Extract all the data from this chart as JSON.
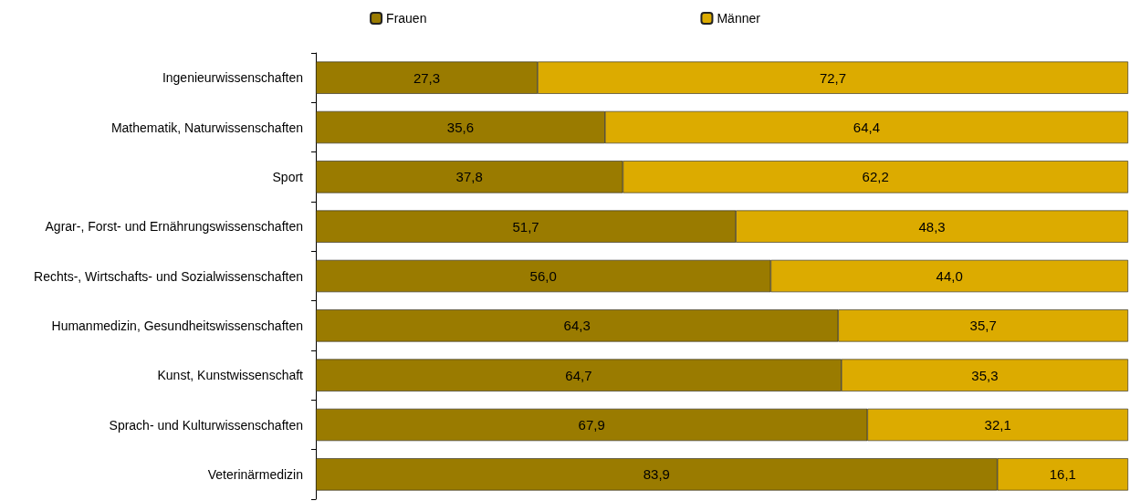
{
  "chart_data": {
    "type": "bar",
    "orientation": "horizontal",
    "stacked": true,
    "categories": [
      "Ingenieurwissenschaften",
      "Mathematik, Naturwissenschaften",
      "Sport",
      "Agrar-, Forst- und Ernährungswissenschaften",
      "Rechts-, Wirtschafts- und Sozialwissenschaften",
      "Humanmedizin, Gesundheitswissenschaften",
      "Kunst, Kunstwissenschaft",
      "Sprach- und Kulturwissenschaften",
      "Veterinärmedizin"
    ],
    "series": [
      {
        "name": "Frauen",
        "color": "#9a7b00",
        "values": [
          27.3,
          35.6,
          37.8,
          51.7,
          56.0,
          64.3,
          64.7,
          67.9,
          83.9
        ],
        "value_labels": [
          "27,3",
          "35,6",
          "37,8",
          "51,7",
          "56,0",
          "64,3",
          "64,7",
          "67,9",
          "83,9"
        ]
      },
      {
        "name": "Männer",
        "color": "#dcab00",
        "values": [
          72.7,
          64.4,
          62.2,
          48.3,
          44.0,
          35.7,
          35.3,
          32.1,
          16.1
        ],
        "value_labels": [
          "72,7",
          "64,4",
          "62,2",
          "48,3",
          "44,0",
          "35,7",
          "35,3",
          "32,1",
          "16,1"
        ]
      }
    ],
    "xlim": [
      0,
      100
    ],
    "tick_labels": "y",
    "grid": false,
    "legend": "top"
  }
}
